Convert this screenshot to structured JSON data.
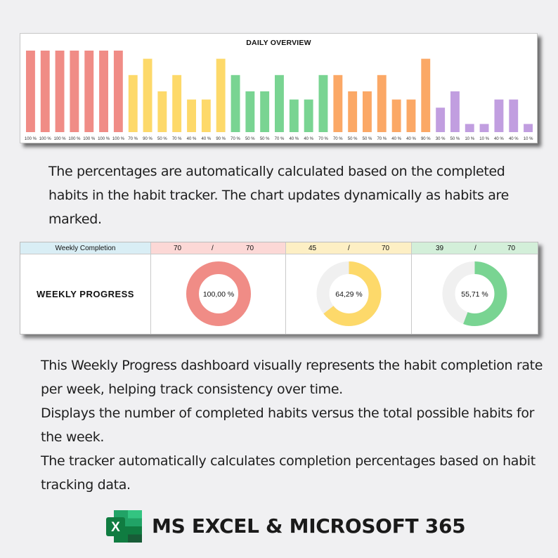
{
  "daily_overview": {
    "chart_data": {
      "type": "bar",
      "title": "DAILY OVERVIEW",
      "ylim": [
        0,
        100
      ],
      "categories": [
        "100 %",
        "100 %",
        "100 %",
        "100 %",
        "100 %",
        "100 %",
        "100 %",
        "70 %",
        "90 %",
        "50 %",
        "70 %",
        "40 %",
        "40 %",
        "90 %",
        "70 %",
        "50 %",
        "50 %",
        "70 %",
        "40 %",
        "40 %",
        "70 %",
        "70 %",
        "50 %",
        "50 %",
        "70 %",
        "40 %",
        "40 %",
        "90 %",
        "30 %",
        "50 %",
        "10 %",
        "10 %",
        "40 %",
        "40 %",
        "10 %"
      ],
      "values": [
        100,
        100,
        100,
        100,
        100,
        100,
        100,
        70,
        90,
        50,
        70,
        40,
        40,
        90,
        70,
        50,
        50,
        70,
        40,
        40,
        70,
        70,
        50,
        50,
        70,
        40,
        40,
        90,
        30,
        50,
        10,
        10,
        40,
        40,
        10
      ],
      "week_colors": [
        "#f08c86",
        "#fdd96a",
        "#79d492",
        "#fba866",
        "#c19ee0"
      ],
      "week_size": 7
    }
  },
  "para1": "The percentages are automatically calculated based on the completed habits in the habit tracker. The chart updates dynamically as habits are marked.",
  "weekly": {
    "header_label": "Weekly Completion",
    "title": "WEEKLY PROGRESS",
    "slash": "/",
    "weeks": [
      {
        "completed": "70",
        "total": "70",
        "percent_label": "100,00 %",
        "fraction": 1.0,
        "color": "#f08c86",
        "header_bg": "#fcd8d6"
      },
      {
        "completed": "45",
        "total": "70",
        "percent_label": "64,29 %",
        "fraction": 0.6429,
        "color": "#fdd96a",
        "header_bg": "#fdefc4"
      },
      {
        "completed": "39",
        "total": "70",
        "percent_label": "55,71 %",
        "fraction": 0.5571,
        "color": "#79d492",
        "header_bg": "#d3efd9"
      }
    ]
  },
  "para2": [
    "This Weekly Progress dashboard visually represents the habit completion rate per week, helping track consistency over time.",
    "Displays the number of completed habits versus the total possible habits for the week.",
    "The tracker automatically calculates completion percentages based on habit tracking data."
  ],
  "footer": {
    "icon": "excel-icon",
    "icon_letter": "X",
    "text": "MS EXCEL & MICROSOFT 365"
  }
}
